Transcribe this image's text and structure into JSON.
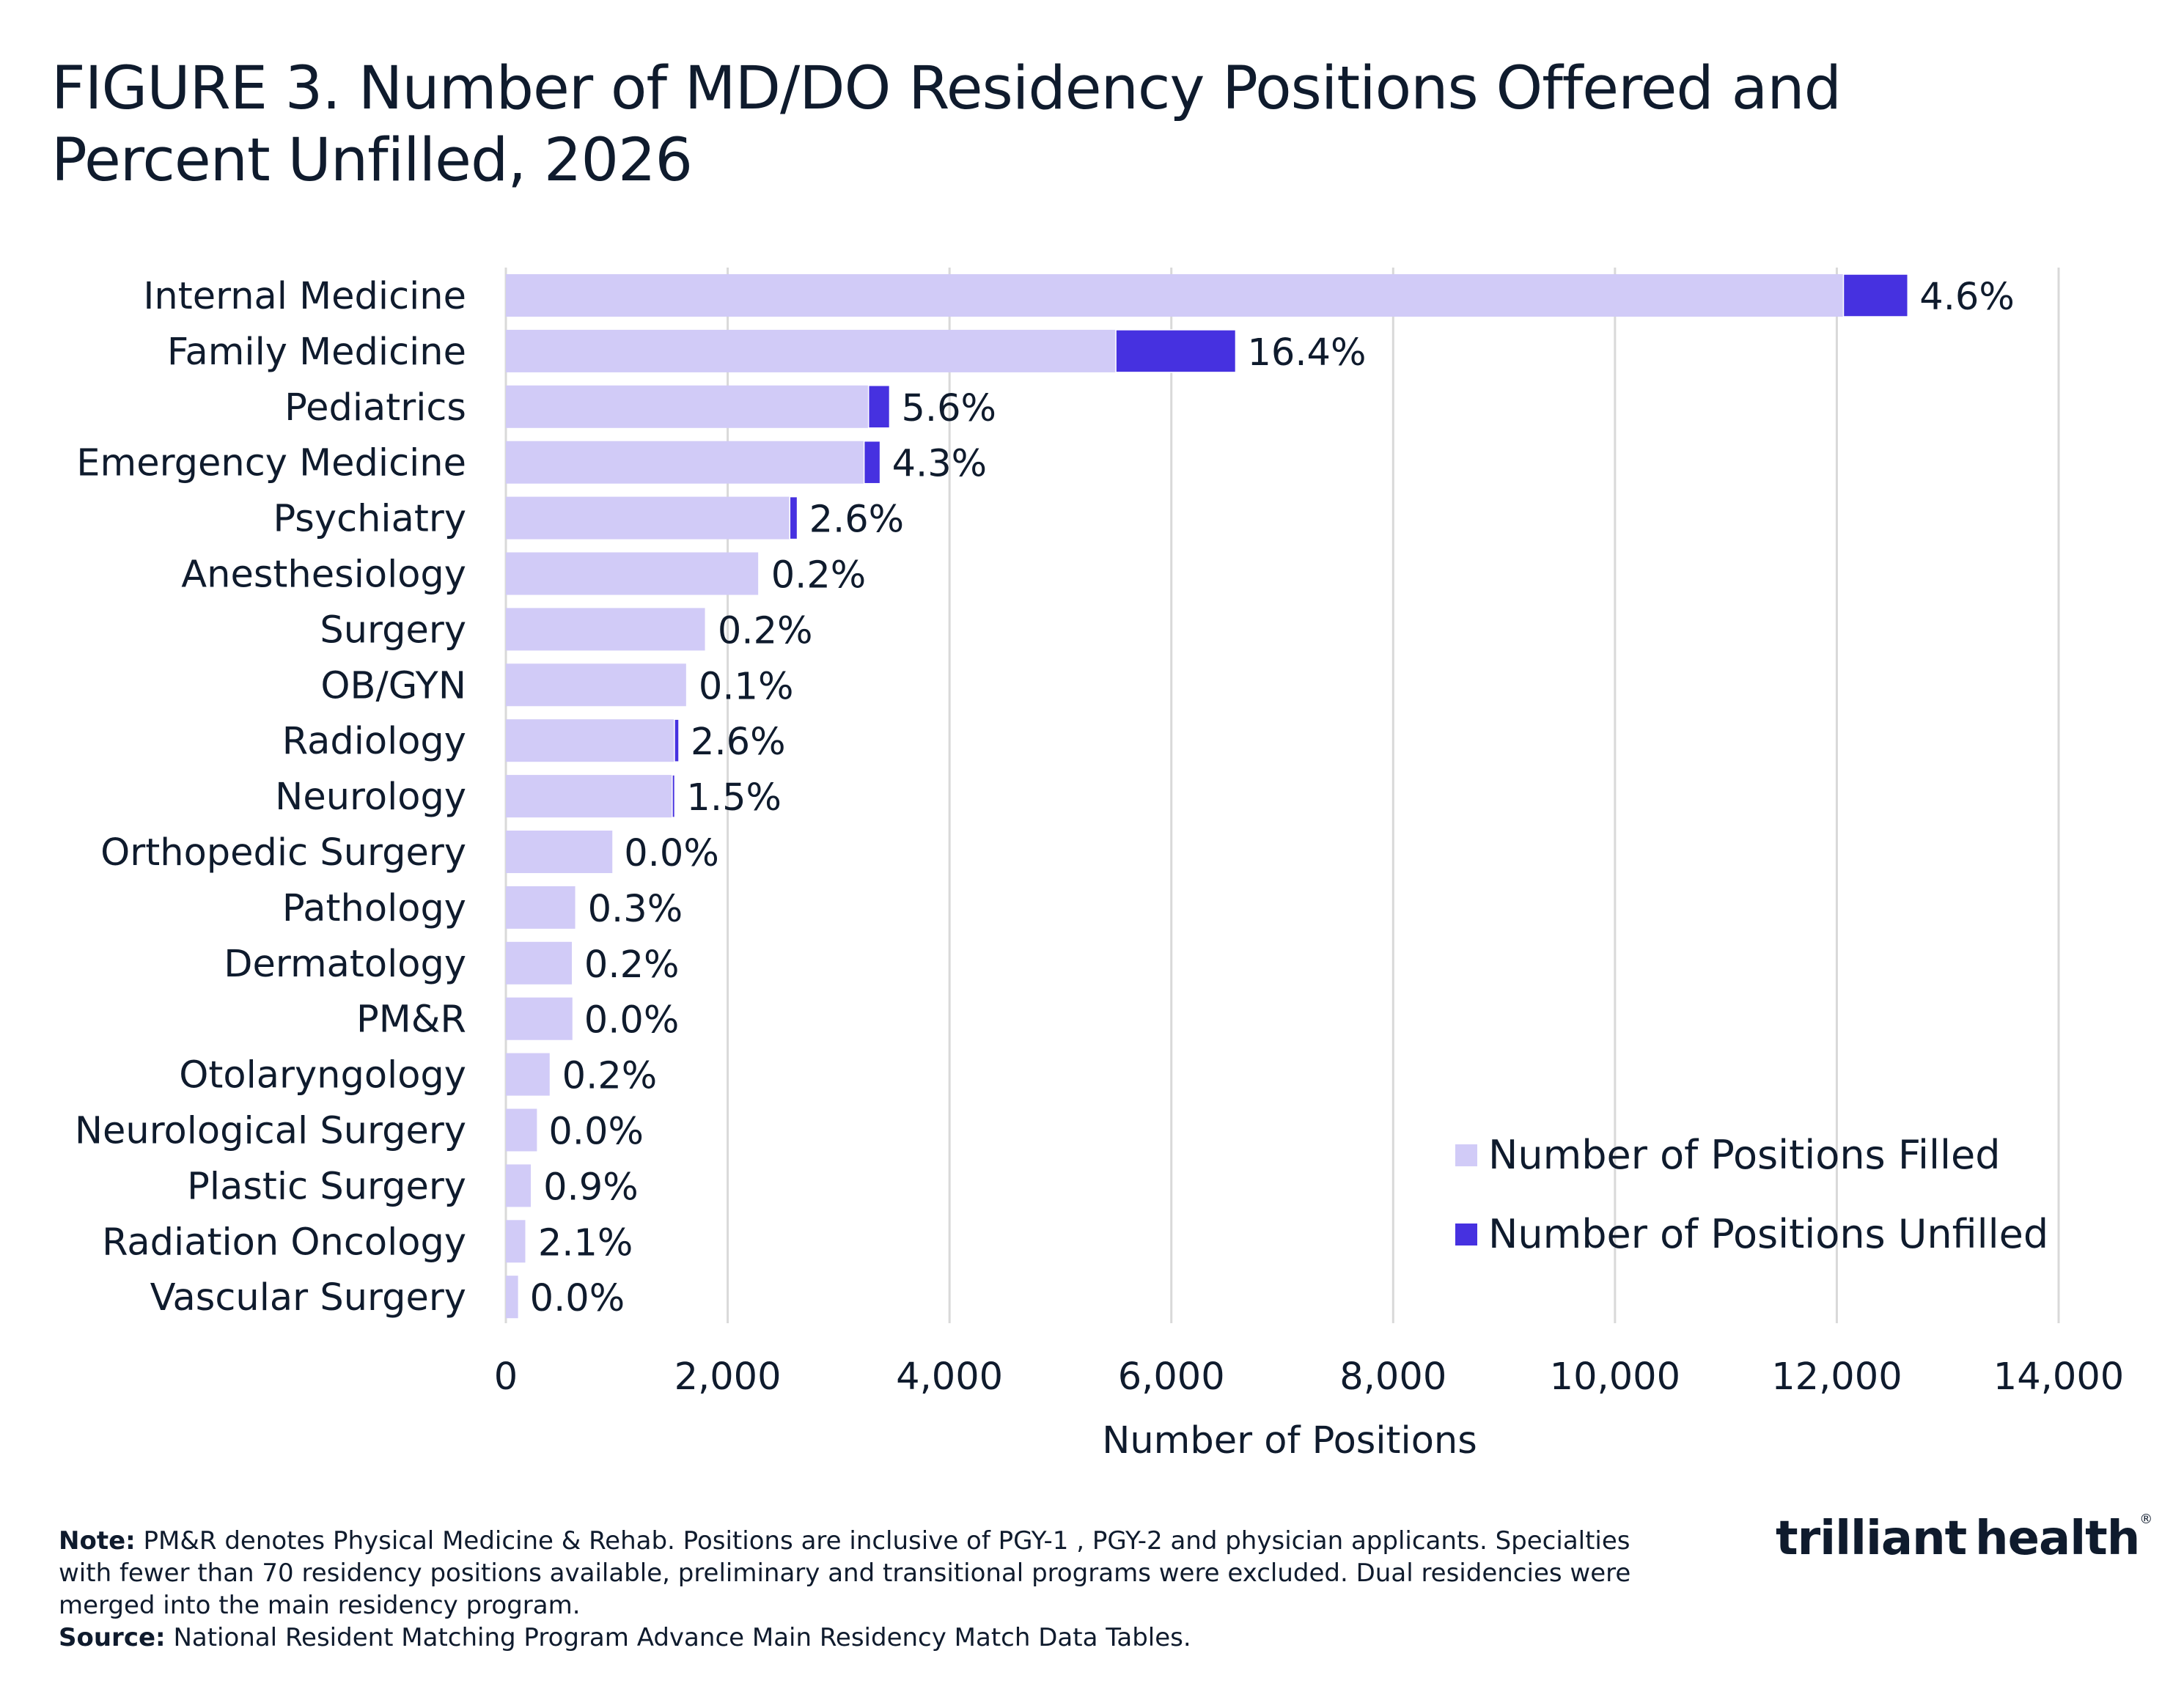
{
  "title": "FIGURE 3. Number of MD/DO Residency Positions Offered and Percent Unfilled, 2026",
  "colors": {
    "filled": "#d1cbf7",
    "unfilled": "#4631e0",
    "grid": "#d9d9d9",
    "text": "#0f1b2d",
    "logo_accent": "#2fd3a0"
  },
  "chart_data": {
    "type": "bar",
    "orientation": "horizontal",
    "stacked": true,
    "categories": [
      "Internal Medicine",
      "Family Medicine",
      "Pediatrics",
      "Emergency Medicine",
      "Psychiatry",
      "Anesthesiology",
      "Surgery",
      "OB/GYN",
      "Radiology",
      "Neurology",
      "Orthopedic Surgery",
      "Pathology",
      "Dermatology",
      "PM&R",
      "Otolaryngology",
      "Neurological Surgery",
      "Plastic Surgery",
      "Radiation Oncology",
      "Vascular Surgery"
    ],
    "series": [
      {
        "name": "Number of Positions Filled",
        "values": [
          12060,
          5500,
          3270,
          3230,
          2560,
          2280,
          1800,
          1630,
          1520,
          1500,
          960,
          630,
          600,
          600,
          400,
          280,
          230,
          180,
          110
        ]
      },
      {
        "name": "Number of Positions Unfilled",
        "values": [
          580,
          1080,
          190,
          145,
          68,
          5,
          4,
          2,
          40,
          23,
          0,
          2,
          1,
          0,
          1,
          0,
          2,
          4,
          0
        ]
      }
    ],
    "data_labels": [
      "4.6%",
      "16.4%",
      "5.6%",
      "4.3%",
      "2.6%",
      "0.2%",
      "0.2%",
      "0.1%",
      "2.6%",
      "1.5%",
      "0.0%",
      "0.3%",
      "0.2%",
      "0.0%",
      "0.2%",
      "0.0%",
      "0.9%",
      "2.1%",
      "0.0%"
    ],
    "xlabel": "Number of Positions",
    "xlim": [
      0,
      14000
    ],
    "xticks": [
      0,
      2000,
      4000,
      6000,
      8000,
      10000,
      12000,
      14000
    ],
    "xtick_labels": [
      "0",
      "2,000",
      "4,000",
      "6,000",
      "8,000",
      "10,000",
      "12,000",
      "14,000"
    ],
    "grid": "vertical",
    "legend_position": "bottom-right"
  },
  "footnote": {
    "note_label": "Note:",
    "note_text": "PM&R denotes Physical Medicine & Rehab. Positions are inclusive of PGY-1 , PGY-2 and physician applicants. Specialties with fewer than 70 residency positions available, preliminary and transitional programs were excluded. Dual residencies were merged into the main residency program.",
    "source_label": "Source:",
    "source_text": "National Resident Matching Program Advance Main Residency Match Data Tables."
  },
  "logo": {
    "part1": "trilliant",
    "part2": "health",
    "mark": "®"
  }
}
